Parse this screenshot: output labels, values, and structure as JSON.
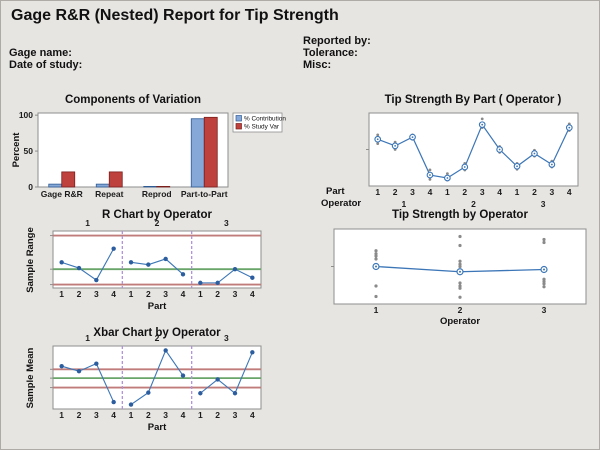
{
  "header": {
    "title": "Gage R&R (Nested) Report for Tip Strength",
    "gage_name_label": "Gage name:",
    "date_of_study_label": "Date of study:",
    "reported_by_label": "Reported by:",
    "tolerance_label": "Tolerance:",
    "misc_label": "Misc:"
  },
  "colors": {
    "background": "#e7e5e2",
    "frame": "#8e8e8e",
    "bar_blue_fill": "#85a8d8",
    "bar_blue_stroke": "#2f5b94",
    "bar_red_fill": "#bf413d",
    "bar_red_stroke": "#7a1f1c",
    "line_blue": "#3c76b7",
    "point_blue": "#2c5d9e",
    "gray_dot": "#8a8a8a",
    "control_red": "#c07c7a",
    "control_green": "#69a569",
    "separator_purple": "#b193d9"
  },
  "chart_data": [
    {
      "id": "components_of_variation",
      "type": "bar",
      "title": "Components of Variation",
      "ylabel": "Percent",
      "yticks": [
        0,
        50,
        100
      ],
      "ylim": [
        0,
        103
      ],
      "categories": [
        "Gage R&R",
        "Repeat",
        "Reprod",
        "Part-to-Part"
      ],
      "series": [
        {
          "name": "% Contribution",
          "color": "#85a8d8",
          "values": [
            4,
            4,
            0.5,
            95
          ]
        },
        {
          "name": "% Study Var",
          "color": "#bf413d",
          "values": [
            21,
            21,
            0.7,
            97
          ]
        }
      ],
      "legend_position": "right",
      "grid": false
    },
    {
      "id": "tip_strength_by_part",
      "type": "line",
      "title": "Tip Strength By Part ( Operator )",
      "x_row1_label": "Part",
      "x_row2_label": "Operator",
      "part_ticks": [
        "1",
        "2",
        "3",
        "4",
        "1",
        "2",
        "3",
        "4",
        "1",
        "2",
        "3",
        "4"
      ],
      "operator_ticks": [
        "1",
        "2",
        "3"
      ],
      "note": "y axis unlabeled in source; values are relative plot fractions 0-1",
      "means_rel": [
        0.64,
        0.55,
        0.67,
        0.15,
        0.11,
        0.26,
        0.84,
        0.5,
        0.27,
        0.445,
        0.295,
        0.8
      ],
      "individuals_rel": [
        [
          0.7,
          0.66,
          0.58
        ],
        [
          0.6,
          0.57,
          0.5
        ],
        [
          0.7,
          0.64
        ],
        [
          0.22,
          0.12,
          0.09
        ],
        [
          0.17,
          0.08
        ],
        [
          0.31,
          0.22
        ],
        [
          0.92,
          0.86,
          0.8
        ],
        [
          0.54,
          0.46
        ],
        [
          0.31,
          0.23
        ],
        [
          0.49,
          0.41
        ],
        [
          0.34,
          0.26
        ],
        [
          0.85,
          0.76
        ]
      ]
    },
    {
      "id": "r_chart_by_operator",
      "type": "line",
      "subtype": "control-chart",
      "title": "R Chart by Operator",
      "ylabel": "Sample Range",
      "xlabel": "Part",
      "panels": [
        "1",
        "2",
        "3"
      ],
      "xticks": [
        "1",
        "2",
        "3",
        "4",
        "1",
        "2",
        "3",
        "4",
        "1",
        "2",
        "3",
        "4"
      ],
      "note": "y axis unlabeled in source; values are relative plot fractions 0-1",
      "ucl_rel": 0.92,
      "center_rel": 0.33,
      "lcl_rel": 0.06,
      "values_rel": [
        0.45,
        0.35,
        0.14,
        0.69,
        0.45,
        0.41,
        0.51,
        0.24,
        0.09,
        0.09,
        0.33,
        0.18
      ]
    },
    {
      "id": "tip_strength_by_operator",
      "type": "scatter",
      "title": "Tip Strength by Operator",
      "xlabel": "Operator",
      "xticks": [
        "1",
        "2",
        "3"
      ],
      "note": "y axis unlabeled in source; values are relative plot fractions 0-1",
      "means_rel": [
        0.5,
        0.43,
        0.46
      ],
      "individuals_rel": [
        [
          0.71,
          0.67,
          0.64,
          0.6,
          0.24,
          0.1
        ],
        [
          0.9,
          0.78,
          0.57,
          0.53,
          0.5,
          0.28,
          0.24,
          0.21,
          0.09
        ],
        [
          0.86,
          0.82,
          0.33,
          0.3,
          0.27,
          0.23
        ]
      ]
    },
    {
      "id": "xbar_chart_by_operator",
      "type": "line",
      "subtype": "control-chart",
      "title": "Xbar Chart by Operator",
      "ylabel": "Sample Mean",
      "xlabel": "Part",
      "panels": [
        "1",
        "2",
        "3"
      ],
      "xticks": [
        "1",
        "2",
        "3",
        "4",
        "1",
        "2",
        "3",
        "4",
        "1",
        "2",
        "3",
        "4"
      ],
      "note": "y axis unlabeled in source; values are relative plot fractions 0-1",
      "ucl_rel": 0.63,
      "center_rel": 0.49,
      "lcl_rel": 0.34,
      "values_rel": [
        0.68,
        0.6,
        0.72,
        0.11,
        0.07,
        0.26,
        0.93,
        0.53,
        0.25,
        0.47,
        0.25,
        0.9
      ]
    }
  ]
}
